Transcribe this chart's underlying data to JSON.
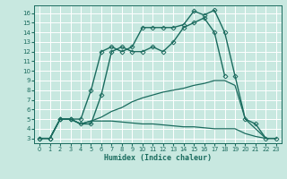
{
  "title": "",
  "xlabel": "Humidex (Indice chaleur)",
  "xlim": [
    -0.5,
    23.5
  ],
  "ylim": [
    2.5,
    16.8
  ],
  "xticks": [
    0,
    1,
    2,
    3,
    4,
    5,
    6,
    7,
    8,
    9,
    10,
    11,
    12,
    13,
    14,
    15,
    16,
    17,
    18,
    19,
    20,
    21,
    22,
    23
  ],
  "yticks": [
    3,
    4,
    5,
    6,
    7,
    8,
    9,
    10,
    11,
    12,
    13,
    14,
    15,
    16
  ],
  "bg_color": "#c8e8e0",
  "grid_color": "#ffffff",
  "line_color": "#1a6b5e",
  "lines": [
    {
      "x": [
        0,
        1,
        2,
        3,
        4,
        5,
        6,
        7,
        8,
        9,
        10,
        11,
        12,
        13,
        14,
        15,
        16,
        17,
        18,
        19,
        20,
        21,
        22,
        23
      ],
      "y": [
        3,
        3,
        5,
        5,
        5,
        8,
        12,
        12.5,
        12,
        12.5,
        14.5,
        14.5,
        14.5,
        14.5,
        14.8,
        16.2,
        15.8,
        16.3,
        14,
        9.5,
        5,
        4.5,
        3,
        3
      ],
      "marker": "D",
      "markersize": 2.5,
      "linewidth": 1.0
    },
    {
      "x": [
        0,
        1,
        2,
        3,
        4,
        5,
        6,
        7,
        8,
        9,
        10,
        11,
        12,
        13,
        14,
        15,
        16,
        17,
        18
      ],
      "y": [
        3,
        3,
        5,
        5,
        4.5,
        4.5,
        7.5,
        12,
        12.5,
        12,
        12,
        12.5,
        12,
        13,
        14.5,
        15,
        15.5,
        14,
        9.5
      ],
      "marker": "D",
      "markersize": 2.5,
      "linewidth": 1.0
    },
    {
      "x": [
        0,
        1,
        2,
        3,
        4,
        5,
        6,
        7,
        8,
        9,
        10,
        11,
        12,
        13,
        14,
        15,
        16,
        17,
        18,
        19,
        20,
        21,
        22,
        23
      ],
      "y": [
        3,
        3,
        5,
        5,
        4.5,
        4.8,
        5.2,
        5.8,
        6.2,
        6.8,
        7.2,
        7.5,
        7.8,
        8.0,
        8.2,
        8.5,
        8.7,
        9.0,
        9.0,
        8.5,
        5,
        4,
        3,
        3
      ],
      "marker": null,
      "markersize": 0,
      "linewidth": 0.9
    },
    {
      "x": [
        0,
        1,
        2,
        3,
        4,
        5,
        6,
        7,
        8,
        9,
        10,
        11,
        12,
        13,
        14,
        15,
        16,
        17,
        18,
        19,
        20,
        21,
        22,
        23
      ],
      "y": [
        3,
        3,
        5,
        5,
        4.5,
        4.8,
        4.8,
        4.8,
        4.7,
        4.6,
        4.5,
        4.5,
        4.4,
        4.3,
        4.2,
        4.2,
        4.1,
        4.0,
        4.0,
        4.0,
        3.5,
        3.2,
        3,
        3
      ],
      "marker": null,
      "markersize": 0,
      "linewidth": 0.9
    }
  ]
}
